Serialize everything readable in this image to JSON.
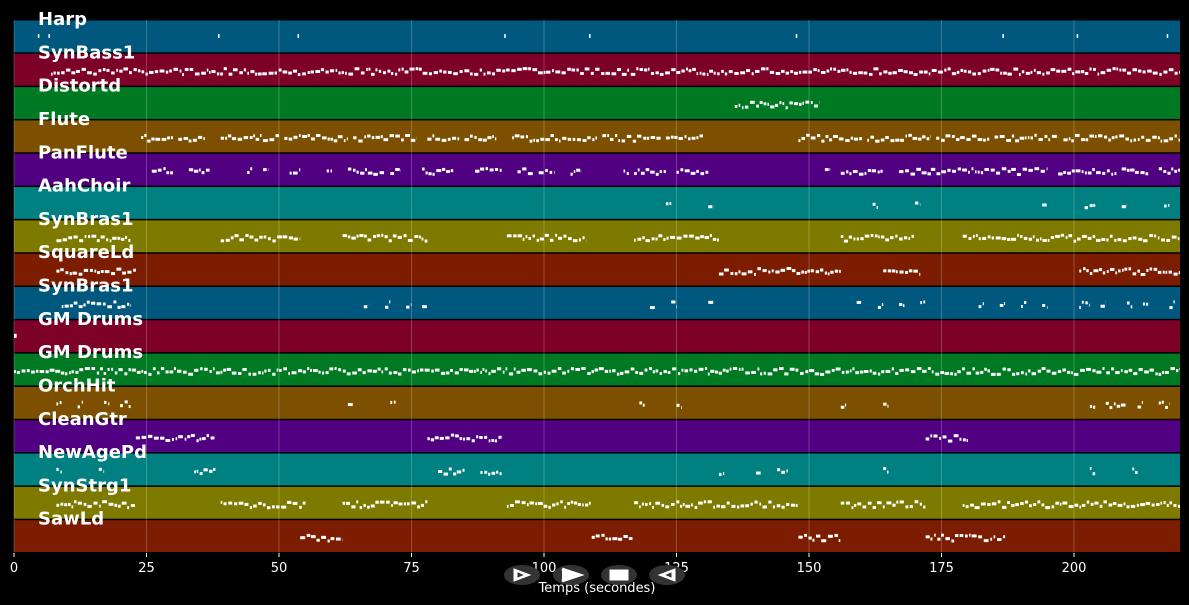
{
  "chart_data": {
    "type": "piano-roll",
    "xlabel": "Temps (secondes)",
    "xlim": [
      0,
      220
    ],
    "x_ticks": [
      0,
      25,
      50,
      75,
      100,
      125,
      150,
      175,
      200
    ],
    "grid": true,
    "tracks": [
      {
        "name": "Harp",
        "color": "#00587e",
        "phrases": [
          [
            4.5,
            4.7
          ],
          [
            6.5,
            6.7
          ],
          [
            38.5,
            38.7
          ],
          [
            53.5,
            53.7
          ],
          [
            92.5,
            92.7
          ],
          [
            108.5,
            108.7
          ],
          [
            147.5,
            147.7
          ],
          [
            186.5,
            186.7
          ],
          [
            200.5,
            200.7
          ],
          [
            217.5,
            217.7
          ]
        ]
      },
      {
        "name": "SynBass1",
        "color": "#7d0028",
        "phrases": [
          [
            7,
            220
          ]
        ]
      },
      {
        "name": "Distortd",
        "color": "#007a22",
        "phrases": [
          [
            136,
            152
          ]
        ]
      },
      {
        "name": "Flute",
        "color": "#7c5000",
        "phrases": [
          [
            24,
            30
          ],
          [
            31,
            36
          ],
          [
            39,
            50
          ],
          [
            51,
            63
          ],
          [
            64,
            76
          ],
          [
            78,
            84
          ],
          [
            85,
            91
          ],
          [
            94,
            110
          ],
          [
            111,
            122
          ],
          [
            123,
            130
          ],
          [
            148,
            160
          ],
          [
            161,
            173
          ],
          [
            174,
            184
          ],
          [
            185,
            197
          ],
          [
            198,
            220
          ]
        ]
      },
      {
        "name": "PanFlute",
        "color": "#500080",
        "phrases": [
          [
            26,
            30
          ],
          [
            33,
            37
          ],
          [
            44,
            45
          ],
          [
            47,
            48
          ],
          [
            52,
            54
          ],
          [
            59,
            60
          ],
          [
            63,
            70
          ],
          [
            71,
            73
          ],
          [
            77,
            83
          ],
          [
            87,
            92
          ],
          [
            95,
            98
          ],
          [
            99,
            102
          ],
          [
            105,
            107
          ],
          [
            115,
            116
          ],
          [
            117,
            123
          ],
          [
            125,
            131
          ],
          [
            153,
            154
          ],
          [
            156,
            164
          ],
          [
            167,
            173
          ],
          [
            173,
            195
          ],
          [
            197,
            208
          ],
          [
            209,
            214
          ],
          [
            216,
            220
          ]
        ]
      },
      {
        "name": "AahChoir",
        "color": "#008080",
        "phrases": [
          [
            123,
            124
          ],
          [
            131,
            132
          ],
          [
            162,
            163
          ],
          [
            170,
            171
          ],
          [
            194,
            195
          ],
          [
            202,
            204
          ],
          [
            209,
            210
          ],
          [
            217,
            218
          ]
        ]
      },
      {
        "name": "SynBras1",
        "color": "#7e7a00",
        "phrases": [
          [
            8,
            22
          ],
          [
            39,
            54
          ],
          [
            62,
            78
          ],
          [
            93,
            108
          ],
          [
            117,
            133
          ],
          [
            156,
            170
          ],
          [
            179,
            220
          ]
        ]
      },
      {
        "name": "SquareLd",
        "color": "#7c1c00",
        "phrases": [
          [
            8,
            23
          ],
          [
            133,
            156
          ],
          [
            164,
            171
          ],
          [
            201,
            220
          ]
        ]
      },
      {
        "name": "SynBras1",
        "color": "#00587e",
        "phrases": [
          [
            9,
            22
          ],
          [
            66,
            67
          ],
          [
            70,
            71
          ],
          [
            74,
            75
          ],
          [
            77,
            78
          ],
          [
            120,
            121
          ],
          [
            124,
            125
          ],
          [
            131,
            132
          ],
          [
            159,
            160
          ],
          [
            163,
            164
          ],
          [
            167,
            168
          ],
          [
            171,
            172
          ],
          [
            182,
            183
          ],
          [
            186,
            187
          ],
          [
            190,
            191
          ],
          [
            194,
            195
          ],
          [
            201,
            203
          ],
          [
            205,
            206
          ],
          [
            210,
            211
          ],
          [
            213,
            214
          ],
          [
            218,
            219
          ]
        ]
      },
      {
        "name": "GM Drums",
        "color": "#7d0028",
        "phrases": [
          [
            0,
            0.5
          ]
        ]
      },
      {
        "name": "GM Drums",
        "color": "#007a22",
        "phrases": [
          [
            0,
            220
          ]
        ]
      },
      {
        "name": "OrchHit",
        "color": "#7c5000",
        "phrases": [
          [
            8,
            9
          ],
          [
            12,
            13
          ],
          [
            17,
            18
          ],
          [
            20,
            22
          ],
          [
            63,
            64
          ],
          [
            71,
            72
          ],
          [
            118,
            119
          ],
          [
            125,
            126
          ],
          [
            156,
            157
          ],
          [
            164,
            165
          ],
          [
            203,
            204
          ],
          [
            206,
            210
          ],
          [
            212,
            213
          ],
          [
            216,
            218
          ]
        ]
      },
      {
        "name": "CleanGtr",
        "color": "#500080",
        "phrases": [
          [
            23,
            38
          ],
          [
            78,
            92
          ],
          [
            172,
            180
          ]
        ]
      },
      {
        "name": "NewAgePd",
        "color": "#008080",
        "phrases": [
          [
            8,
            9
          ],
          [
            16,
            17
          ],
          [
            34,
            38
          ],
          [
            80,
            85
          ],
          [
            88,
            92
          ],
          [
            133,
            134
          ],
          [
            140,
            141
          ],
          [
            144,
            146
          ],
          [
            164,
            165
          ],
          [
            203,
            204
          ],
          [
            211,
            212
          ]
        ]
      },
      {
        "name": "SynStrg1",
        "color": "#7e7a00",
        "phrases": [
          [
            8,
            23
          ],
          [
            39,
            55
          ],
          [
            62,
            78
          ],
          [
            93,
            109
          ],
          [
            117,
            148
          ],
          [
            156,
            172
          ],
          [
            179,
            220
          ]
        ]
      },
      {
        "name": "SawLd",
        "color": "#7c1c00",
        "phrases": [
          [
            54,
            62
          ],
          [
            109,
            117
          ],
          [
            148,
            156
          ],
          [
            172,
            187
          ]
        ]
      }
    ]
  },
  "controls": [
    {
      "name": "rewind-icon"
    },
    {
      "name": "play-icon"
    },
    {
      "name": "stop-icon"
    },
    {
      "name": "back-icon"
    }
  ]
}
